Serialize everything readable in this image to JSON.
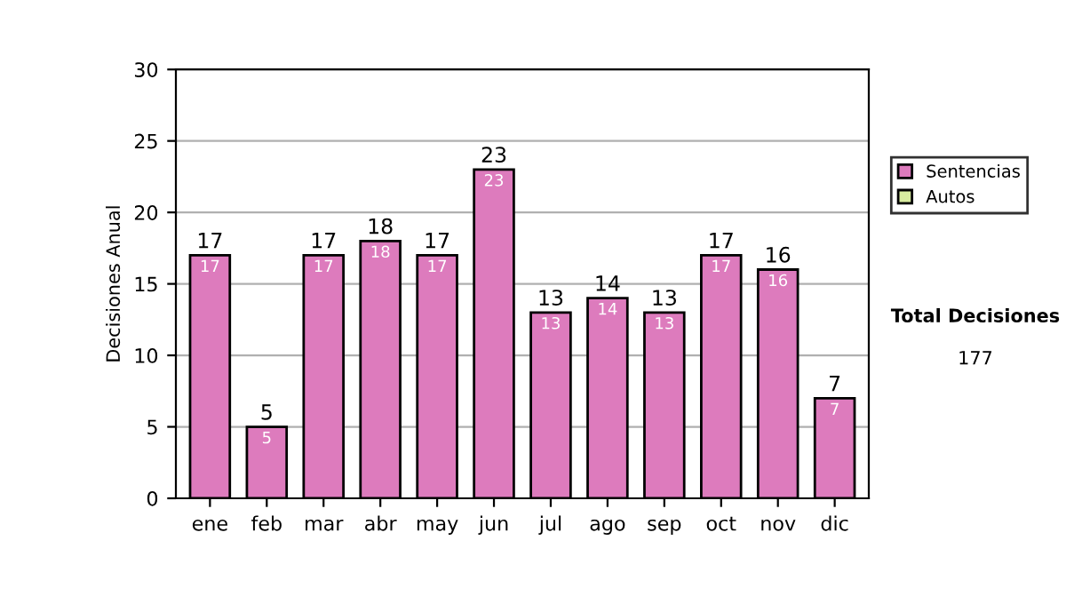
{
  "chart_data": {
    "type": "bar",
    "stacked": true,
    "ylabel": "Decisiones Anual",
    "categories": [
      "ene",
      "feb",
      "mar",
      "abr",
      "may",
      "jun",
      "jul",
      "ago",
      "sep",
      "oct",
      "nov",
      "dic"
    ],
    "series": [
      {
        "name": "Sentencias",
        "color": "#dd7bbd",
        "values": [
          17,
          5,
          17,
          18,
          17,
          23,
          13,
          14,
          13,
          17,
          16,
          7
        ],
        "value_labels": [
          "17",
          "5",
          "17",
          "18",
          "17",
          "23",
          "13",
          "14",
          "13",
          "17",
          "16",
          "7"
        ]
      },
      {
        "name": "Autos",
        "color": "#d8eca0",
        "values": [
          null,
          null,
          null,
          null,
          null,
          null,
          null,
          null,
          null,
          null,
          null,
          null
        ]
      }
    ],
    "totals": [
      "17",
      "5",
      "17",
      "18",
      "17",
      "23",
      "13",
      "14",
      "13",
      "17",
      "16",
      "7"
    ],
    "ylim": [
      0,
      30
    ],
    "yticks": [
      0,
      5,
      10,
      15,
      20,
      25,
      30
    ],
    "grid": "y",
    "legend": "right",
    "annotations": [
      "Total Decisiones",
      "177"
    ]
  }
}
